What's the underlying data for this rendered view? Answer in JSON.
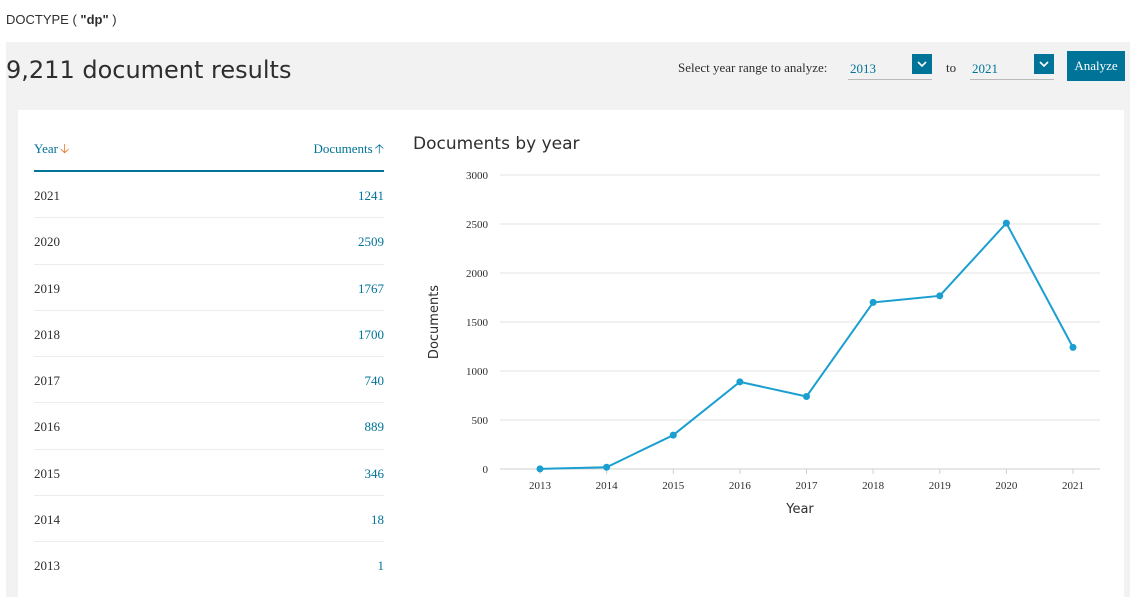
{
  "query": {
    "prefix": "DOCTYPE ( ",
    "value": "\"dp\"",
    "suffix": " )"
  },
  "header": {
    "result_count": "9,211 document results",
    "range_label": "Select year range to analyze:",
    "year_from": "2013",
    "to_label": "to",
    "year_to": "2021",
    "analyze_label": "Analyze"
  },
  "table": {
    "col_year": "Year",
    "col_documents": "Documents",
    "rows": [
      {
        "year": "2021",
        "documents": "1241"
      },
      {
        "year": "2020",
        "documents": "2509"
      },
      {
        "year": "2019",
        "documents": "1767"
      },
      {
        "year": "2018",
        "documents": "1700"
      },
      {
        "year": "2017",
        "documents": "740"
      },
      {
        "year": "2016",
        "documents": "889"
      },
      {
        "year": "2015",
        "documents": "346"
      },
      {
        "year": "2014",
        "documents": "18"
      },
      {
        "year": "2013",
        "documents": "1"
      }
    ]
  },
  "colors": {
    "accent": "#007398",
    "sort_arrow": "#e9711c",
    "line": "#1a9fd0"
  },
  "chart_data": {
    "type": "line",
    "title": "Documents by year",
    "xlabel": "Year",
    "ylabel": "Documents",
    "x": [
      "2013",
      "2014",
      "2015",
      "2016",
      "2017",
      "2018",
      "2019",
      "2020",
      "2021"
    ],
    "values": [
      1,
      18,
      346,
      889,
      740,
      1700,
      1767,
      2509,
      1241
    ],
    "ylim": [
      0,
      3000
    ],
    "yticks": [
      0,
      500,
      1000,
      1500,
      2000,
      2500,
      3000
    ],
    "grid": true
  }
}
